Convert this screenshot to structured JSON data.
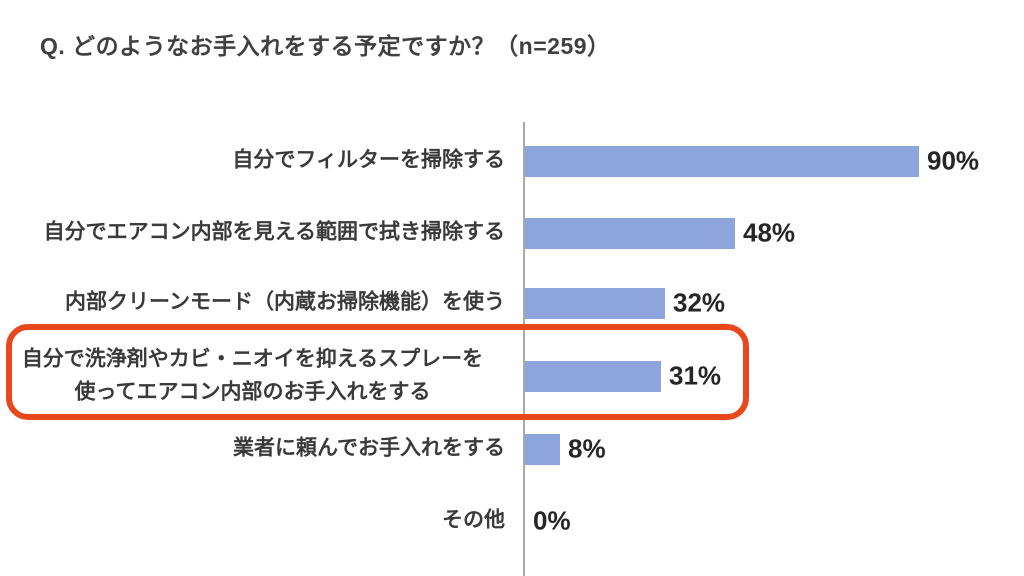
{
  "title": "Q. どのようなお手入れをする予定ですか？（n=259）",
  "chart_data": {
    "type": "bar",
    "orientation": "horizontal",
    "title": "Q. どのようなお手入れをする予定ですか？（n=259）",
    "sample_size": 259,
    "categories": [
      "自分でフィルターを掃除する",
      "自分でエアコン内部を見える範囲で拭き掃除する",
      "内部クリーンモード（内蔵お掃除機能）を使う",
      "自分で洗浄剤やカビ・ニオイを抑えるスプレーを\n使ってエアコン内部のお手入れをする",
      "業者に頼んでお手入れをする",
      "その他"
    ],
    "values": [
      90,
      48,
      32,
      31,
      8,
      0
    ],
    "value_labels": [
      "90%",
      "48%",
      "32%",
      "31%",
      "8%",
      "0%"
    ],
    "highlighted_index": 3,
    "xlim": [
      0,
      100
    ],
    "grid": false,
    "colors": {
      "bar": "#8EA5DB",
      "highlight_outline": "#E8481C",
      "axis_line": "#A9A9A9",
      "label_text": "#3A3A3A",
      "value_text": "#262626",
      "title_text": "#404040",
      "background": "#FFFFFF"
    }
  }
}
